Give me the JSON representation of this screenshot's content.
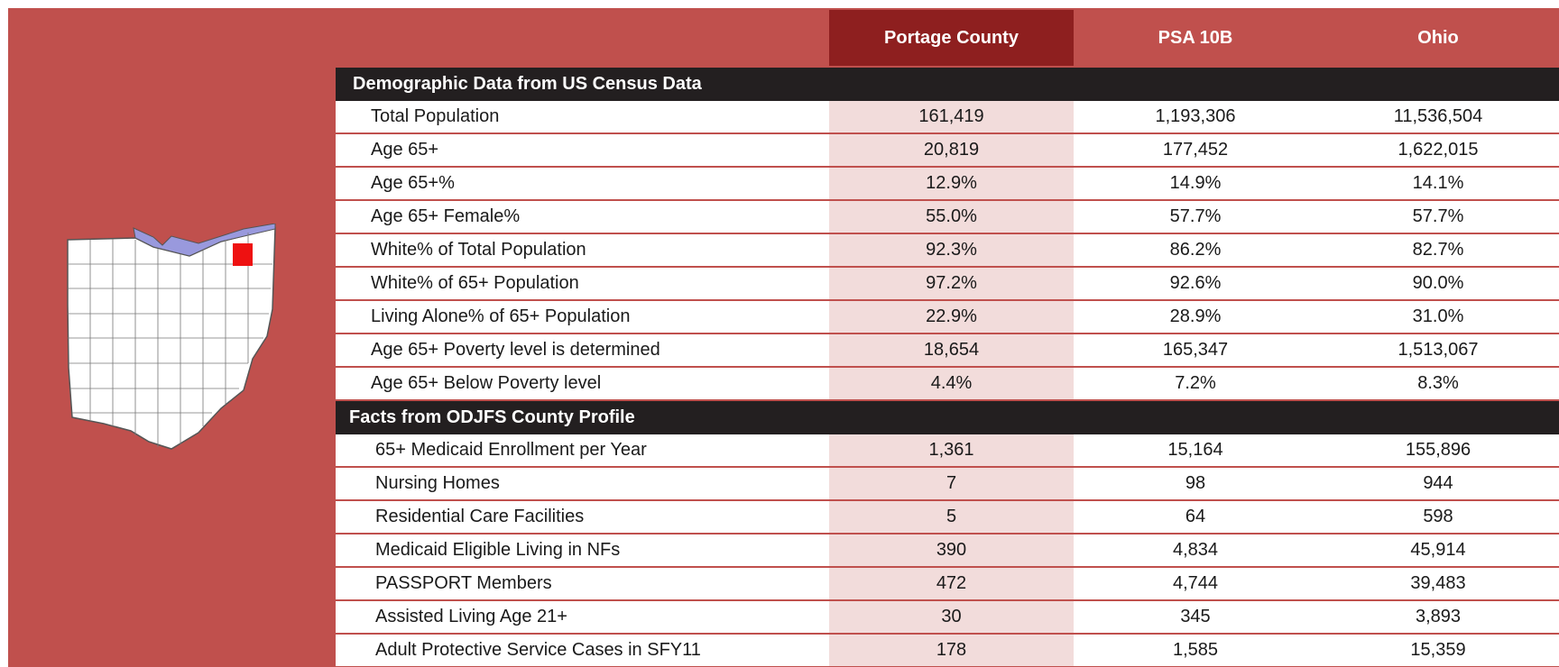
{
  "header": {
    "columns": [
      "Portage County",
      "PSA 10B",
      "Ohio"
    ]
  },
  "sections": [
    {
      "title": "Demographic Data from US Census Data",
      "rows": [
        {
          "label": "Total Population",
          "values": [
            "161,419",
            "1,193,306",
            "11,536,504"
          ]
        },
        {
          "label": "Age 65+",
          "values": [
            "20,819",
            "177,452",
            "1,622,015"
          ]
        },
        {
          "label": "Age 65+%",
          "values": [
            "12.9%",
            "14.9%",
            "14.1%"
          ]
        },
        {
          "label": "Age 65+ Female%",
          "values": [
            "55.0%",
            "57.7%",
            "57.7%"
          ]
        },
        {
          "label": "White% of Total Population",
          "values": [
            "92.3%",
            "86.2%",
            "82.7%"
          ]
        },
        {
          "label": "White% of 65+ Population",
          "values": [
            "97.2%",
            "92.6%",
            "90.0%"
          ]
        },
        {
          "label": "Living Alone% of 65+ Population",
          "values": [
            "22.9%",
            "28.9%",
            "31.0%"
          ]
        },
        {
          "label": "Age 65+ Poverty level is determined",
          "values": [
            "18,654",
            "165,347",
            "1,513,067"
          ]
        },
        {
          "label": "Age 65+ Below Poverty level",
          "values": [
            "4.4%",
            "7.2%",
            "8.3%"
          ]
        }
      ]
    },
    {
      "title": "Facts from ODJFS County Profile",
      "rows": [
        {
          "label": "65+ Medicaid Enrollment per Year",
          "values": [
            "1,361",
            "15,164",
            "155,896"
          ]
        },
        {
          "label": "Nursing Homes",
          "values": [
            "7",
            "98",
            "944"
          ]
        },
        {
          "label": "Residential Care Facilities",
          "values": [
            "5",
            "64",
            "598"
          ]
        },
        {
          "label": "Medicaid Eligible Living in NFs",
          "values": [
            "390",
            "4,834",
            "45,914"
          ]
        },
        {
          "label": "PASSPORT Members",
          "values": [
            "472",
            "4,744",
            "39,483"
          ]
        },
        {
          "label": "Assisted Living Age 21+",
          "values": [
            "30",
            "345",
            "3,893"
          ]
        },
        {
          "label": "Adult Protective Service Cases in SFY11",
          "values": [
            "178",
            "1,585",
            "15,359"
          ]
        }
      ]
    }
  ]
}
